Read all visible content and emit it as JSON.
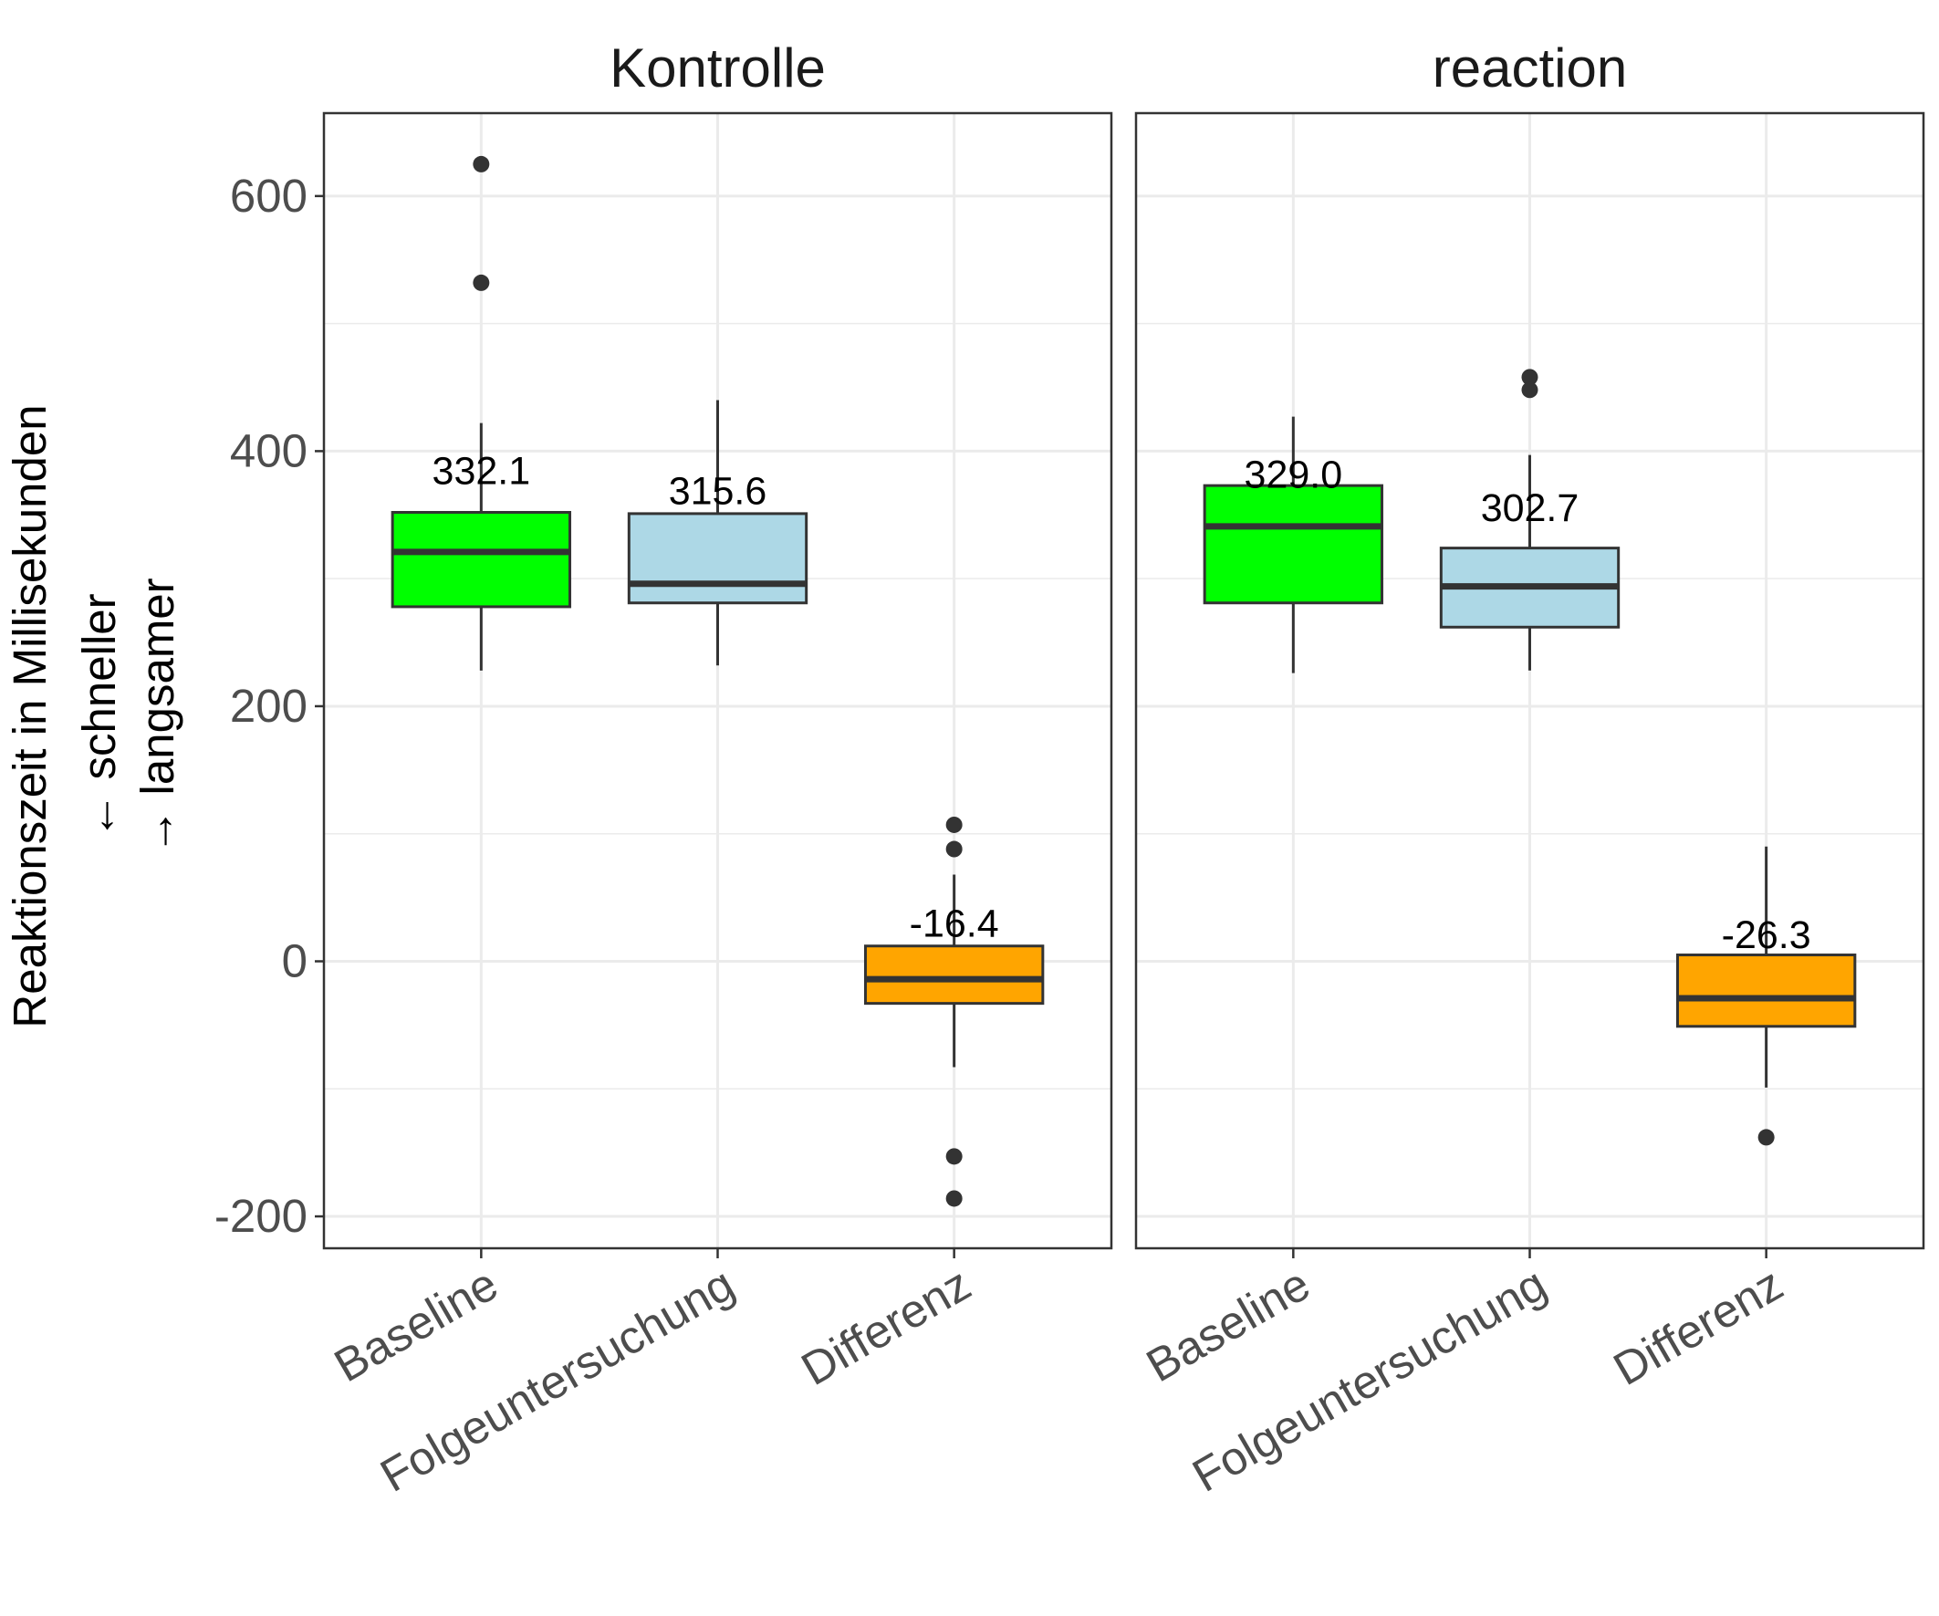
{
  "chart_data": {
    "type": "boxplot",
    "ylabel_lines": [
      "Reaktionszeit in Millisekunden",
      "←  schneller",
      "→ langsamer"
    ],
    "ylim": [
      -225,
      665
    ],
    "yticks": [
      -200,
      0,
      200,
      400,
      600
    ],
    "ytick_labels": [
      "-200",
      "0",
      "200",
      "400",
      "600"
    ],
    "grid": true,
    "categories": [
      "Baseline",
      "Folgeuntersuchung",
      "Differenz"
    ],
    "colors": {
      "Baseline": "#00ff00",
      "Folgeuntersuchung": "#add8e6",
      "Differenz": "#ffa500"
    },
    "panels": [
      {
        "title": "Kontrolle",
        "boxes": [
          {
            "category": "Baseline",
            "lower_whisker": 228,
            "q1": 278,
            "median": 321,
            "q3": 352,
            "upper_whisker": 422,
            "outliers": [
              532,
              625
            ],
            "mean_label": "332.1",
            "label_value": 385
          },
          {
            "category": "Folgeuntersuchung",
            "lower_whisker": 232,
            "q1": 281,
            "median": 296,
            "q3": 351,
            "upper_whisker": 440,
            "outliers": [],
            "mean_label": "315.6",
            "label_value": 369
          },
          {
            "category": "Differenz",
            "lower_whisker": -83,
            "q1": -33,
            "median": -14,
            "q3": 12,
            "upper_whisker": 68,
            "outliers": [
              107,
              88,
              -153,
              -186
            ],
            "mean_label": "-16.4",
            "label_value": 30
          }
        ]
      },
      {
        "title": "reaction",
        "boxes": [
          {
            "category": "Baseline",
            "lower_whisker": 226,
            "q1": 281,
            "median": 341,
            "q3": 373,
            "upper_whisker": 427,
            "outliers": [],
            "mean_label": "329.0",
            "label_value": 382
          },
          {
            "category": "Folgeuntersuchung",
            "lower_whisker": 228,
            "q1": 262,
            "median": 294,
            "q3": 324,
            "upper_whisker": 397,
            "outliers": [
              458,
              448
            ],
            "mean_label": "302.7",
            "label_value": 356
          },
          {
            "category": "Differenz",
            "lower_whisker": -99,
            "q1": -51,
            "median": -29,
            "q3": 5,
            "upper_whisker": 90,
            "outliers": [
              -138
            ],
            "mean_label": "-26.3",
            "label_value": 21
          }
        ]
      }
    ]
  }
}
